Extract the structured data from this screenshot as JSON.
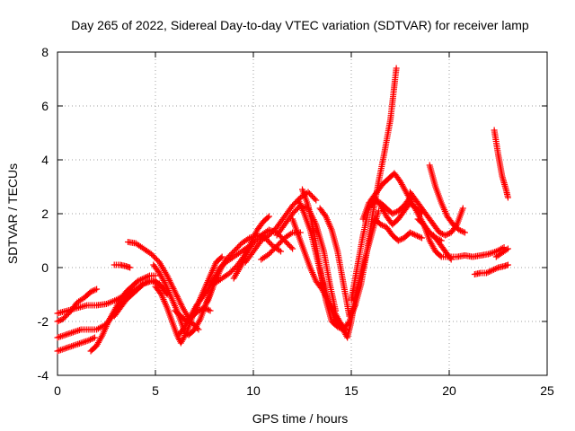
{
  "chart_data": {
    "type": "scatter",
    "title": "Day 265 of 2022, Sidereal Day-to-day VTEC variation (SDTVAR) for receiver lamp",
    "xlabel": "GPS time / hours",
    "ylabel": "SDTVAR / TECUs",
    "xlim": [
      0,
      25
    ],
    "ylim": [
      -4,
      8
    ],
    "xticks": [
      0,
      5,
      10,
      15,
      20,
      25
    ],
    "yticks": [
      -4,
      -2,
      0,
      2,
      4,
      6,
      8
    ],
    "grid": true,
    "marker": "+",
    "color": "#ff0000",
    "series": [
      {
        "x": [
          0.0,
          0.3,
          0.7,
          1.0,
          1.4,
          1.7,
          2.0
        ],
        "y": [
          -2.0,
          -1.9,
          -1.6,
          -1.3,
          -1.1,
          -0.9,
          -0.8
        ]
      },
      {
        "x": [
          0.0,
          0.5,
          1.0,
          1.5,
          2.0,
          2.5,
          3.0,
          3.5,
          4.0,
          4.4,
          4.8,
          5.2,
          5.5
        ],
        "y": [
          -1.7,
          -1.6,
          -1.5,
          -1.4,
          -1.4,
          -1.35,
          -1.2,
          -1.0,
          -0.8,
          -0.6,
          -0.5,
          -0.6,
          -0.9
        ]
      },
      {
        "x": [
          0.0,
          0.4,
          0.8,
          1.2,
          1.6,
          2.0,
          2.5,
          3.0,
          3.4,
          3.7
        ],
        "y": [
          -2.6,
          -2.5,
          -2.4,
          -2.3,
          -2.3,
          -2.3,
          -2.1,
          -1.6,
          -1.2,
          -0.9
        ]
      },
      {
        "x": [
          0.0,
          0.4,
          0.8,
          1.2,
          1.6,
          1.9
        ],
        "y": [
          -3.1,
          -3.0,
          -2.9,
          -2.8,
          -2.7,
          -2.6
        ]
      },
      {
        "x": [
          1.7,
          2.0,
          2.3,
          2.6,
          2.9,
          3.2,
          3.5,
          3.8,
          4.1,
          4.4,
          4.7,
          5.0
        ],
        "y": [
          -3.1,
          -2.9,
          -2.5,
          -2.0,
          -1.6,
          -1.2,
          -0.9,
          -0.7,
          -0.5,
          -0.4,
          -0.3,
          -0.3
        ]
      },
      {
        "x": [
          2.9,
          3.2,
          3.5,
          3.8,
          4.1,
          4.4,
          4.7,
          5.0,
          5.3,
          5.6
        ],
        "y": [
          -1.8,
          -1.5,
          -1.2,
          -1.0,
          -0.8,
          -0.6,
          -0.5,
          -0.5,
          -0.7,
          -1.0
        ]
      },
      {
        "x": [
          2.9,
          3.2,
          3.5,
          3.7
        ],
        "y": [
          0.1,
          0.1,
          0.05,
          0.0
        ]
      },
      {
        "x": [
          3.6,
          4.0,
          4.4,
          4.8,
          5.2,
          5.6,
          6.0,
          6.4,
          6.8,
          7.2
        ],
        "y": [
          0.95,
          0.9,
          0.7,
          0.5,
          0.2,
          -0.3,
          -0.9,
          -1.5,
          -2.0,
          -2.3
        ]
      },
      {
        "x": [
          4.9,
          5.2,
          5.5,
          5.8,
          6.1,
          6.3,
          6.5,
          6.7,
          7.0,
          7.3,
          7.6,
          7.9
        ],
        "y": [
          0.1,
          -0.2,
          -0.6,
          -1.1,
          -1.6,
          -2.0,
          -2.4,
          -2.5,
          -2.3,
          -1.9,
          -1.3,
          -0.8
        ]
      },
      {
        "x": [
          5.0,
          5.3,
          5.6,
          5.9,
          6.1,
          6.3,
          6.6,
          6.9,
          7.2,
          7.5,
          7.8,
          8.1,
          8.4
        ],
        "y": [
          -0.7,
          -1.0,
          -1.5,
          -2.1,
          -2.5,
          -2.8,
          -2.4,
          -1.8,
          -1.3,
          -0.8,
          -0.3,
          0.2,
          0.4
        ]
      },
      {
        "x": [
          6.0,
          6.3,
          6.6,
          6.9,
          7.2,
          7.5,
          7.8
        ],
        "y": [
          -1.6,
          -1.8,
          -2.0,
          -1.8,
          -1.6,
          -1.5,
          -1.6
        ]
      },
      {
        "x": [
          6.2,
          6.5,
          6.8,
          7.1,
          7.4,
          7.7,
          8.0,
          8.3,
          8.6,
          9.0,
          9.4,
          9.8
        ],
        "y": [
          -2.5,
          -2.2,
          -1.8,
          -1.4,
          -1.1,
          -0.8,
          -0.4,
          0.0,
          0.2,
          0.4,
          0.6,
          0.8
        ]
      },
      {
        "x": [
          7.4,
          7.7,
          8.0,
          8.3,
          8.6,
          9.0,
          9.4,
          9.8,
          10.2,
          10.6,
          11.0,
          11.4
        ],
        "y": [
          -1.6,
          -1.2,
          -0.6,
          -0.1,
          0.3,
          0.6,
          0.9,
          1.1,
          1.2,
          1.1,
          0.8,
          0.6
        ]
      },
      {
        "x": [
          8.0,
          8.4,
          8.8,
          9.2,
          9.6,
          10.0,
          10.4,
          10.8,
          11.2,
          11.6,
          12.0
        ],
        "y": [
          -0.6,
          -0.4,
          -0.2,
          0.1,
          0.5,
          0.9,
          1.2,
          1.4,
          1.3,
          1.0,
          0.7
        ]
      },
      {
        "x": [
          9.0,
          9.4,
          9.8,
          10.2,
          10.5,
          10.8
        ],
        "y": [
          -0.4,
          0.1,
          0.8,
          1.4,
          1.7,
          1.9
        ]
      },
      {
        "x": [
          9.6,
          10.0,
          10.4,
          10.8,
          11.2,
          11.6,
          12.0,
          12.4,
          12.8,
          13.2
        ],
        "y": [
          0.2,
          0.6,
          1.0,
          1.2,
          1.5,
          1.9,
          2.3,
          2.6,
          2.8,
          2.5
        ]
      },
      {
        "x": [
          10.4,
          10.8,
          11.2,
          11.6,
          12.0,
          12.4
        ],
        "y": [
          0.3,
          0.5,
          0.8,
          1.1,
          1.3,
          1.3
        ]
      },
      {
        "x": [
          11.2,
          11.6,
          12.0,
          12.4,
          12.8,
          13.2,
          13.6,
          13.9,
          14.2
        ],
        "y": [
          1.2,
          1.6,
          2.0,
          2.3,
          2.2,
          1.6,
          0.6,
          -0.6,
          -1.6
        ]
      },
      {
        "x": [
          12.0,
          12.3,
          12.6,
          12.9,
          13.2,
          13.5,
          13.8,
          14.1,
          14.4,
          14.7
        ],
        "y": [
          1.8,
          1.2,
          0.6,
          0.0,
          -0.5,
          -0.8,
          -1.2,
          -1.6,
          -2.0,
          -2.3
        ]
      },
      {
        "x": [
          12.3,
          12.6,
          12.9,
          13.2,
          13.5,
          13.8,
          14.1,
          14.4
        ],
        "y": [
          2.5,
          2.0,
          1.4,
          0.5,
          -0.4,
          -1.2,
          -1.8,
          -2.2
        ]
      },
      {
        "x": [
          12.5,
          12.8,
          13.1,
          13.4,
          13.7,
          14.0,
          14.3,
          14.6,
          14.9,
          15.2
        ],
        "y": [
          2.9,
          2.3,
          1.3,
          0.0,
          -1.2,
          -2.0,
          -2.2,
          -2.3,
          -2.0,
          -1.4
        ]
      },
      {
        "x": [
          13.4,
          13.7,
          14.0,
          14.3,
          14.6,
          14.9,
          15.2,
          15.5,
          15.8,
          16.1,
          16.4,
          16.7,
          17.0,
          17.3
        ],
        "y": [
          2.2,
          1.9,
          1.4,
          0.6,
          -0.6,
          -1.8,
          -1.4,
          -0.6,
          0.6,
          2.0,
          3.2,
          4.3,
          5.5,
          7.4
        ]
      },
      {
        "x": [
          14.2,
          14.5,
          14.8,
          15.0,
          15.2,
          15.5,
          15.8,
          16.1,
          16.4
        ],
        "y": [
          -1.8,
          -2.2,
          -2.6,
          -2.0,
          -1.1,
          -0.2,
          0.6,
          1.4,
          2.1
        ]
      },
      {
        "x": [
          15.0,
          15.3,
          15.6,
          15.9,
          16.2,
          16.5,
          16.8,
          17.1,
          17.4,
          17.7,
          18.0
        ],
        "y": [
          -1.2,
          0.0,
          1.2,
          2.2,
          2.5,
          2.4,
          2.2,
          2.0,
          2.1,
          2.3,
          2.6
        ]
      },
      {
        "x": [
          15.6,
          15.9,
          16.2,
          16.5,
          16.8,
          17.1,
          17.4,
          17.7,
          18.0,
          18.3,
          18.6
        ],
        "y": [
          1.8,
          2.4,
          2.6,
          2.3,
          1.9,
          1.6,
          1.8,
          2.1,
          2.4,
          2.2,
          2.0
        ]
      },
      {
        "x": [
          16.0,
          16.3,
          16.6,
          16.9,
          17.2,
          17.5,
          17.8,
          18.1,
          18.4,
          18.7,
          19.0,
          19.3,
          19.6
        ],
        "y": [
          2.5,
          2.8,
          3.1,
          3.3,
          3.5,
          3.2,
          2.8,
          2.4,
          2.0,
          1.6,
          1.3,
          1.1,
          1.0
        ]
      },
      {
        "x": [
          16.2,
          16.5,
          16.8,
          17.1,
          17.4,
          17.7,
          18.0,
          18.3,
          18.6
        ],
        "y": [
          1.8,
          1.6,
          1.5,
          1.2,
          1.0,
          1.1,
          1.3,
          1.2,
          1.1
        ]
      },
      {
        "x": [
          18.0,
          18.3,
          18.6,
          18.9,
          19.2,
          19.5,
          19.8,
          20.1,
          20.4,
          20.7
        ],
        "y": [
          2.8,
          2.5,
          2.2,
          1.9,
          1.6,
          1.3,
          1.2,
          1.3,
          1.6,
          2.2
        ]
      },
      {
        "x": [
          18.4,
          18.7,
          19.0,
          19.3,
          19.6,
          20.0,
          20.4,
          20.8,
          21.2,
          21.6,
          22.0,
          22.4,
          22.8
        ],
        "y": [
          1.8,
          1.6,
          1.0,
          0.6,
          0.4,
          0.4,
          0.4,
          0.45,
          0.4,
          0.45,
          0.5,
          0.6,
          0.75
        ]
      },
      {
        "x": [
          19.0,
          19.3,
          19.6,
          19.9,
          20.2,
          20.5,
          20.8
        ],
        "y": [
          3.8,
          3.0,
          2.4,
          1.9,
          1.6,
          1.4,
          1.3
        ]
      },
      {
        "x": [
          19.2,
          19.5,
          19.8,
          20.1
        ],
        "y": [
          1.2,
          0.9,
          0.6,
          0.3
        ]
      },
      {
        "x": [
          21.3,
          21.6,
          21.9,
          22.2,
          22.5,
          22.8,
          23.0
        ],
        "y": [
          -0.25,
          -0.2,
          -0.2,
          -0.1,
          0.0,
          0.05,
          0.1
        ]
      },
      {
        "x": [
          22.3,
          22.5,
          22.7,
          22.9,
          23.0
        ],
        "y": [
          5.1,
          4.2,
          3.4,
          2.9,
          2.6
        ]
      },
      {
        "x": [
          22.4,
          22.7,
          23.0
        ],
        "y": [
          0.4,
          0.55,
          0.7
        ]
      }
    ]
  }
}
